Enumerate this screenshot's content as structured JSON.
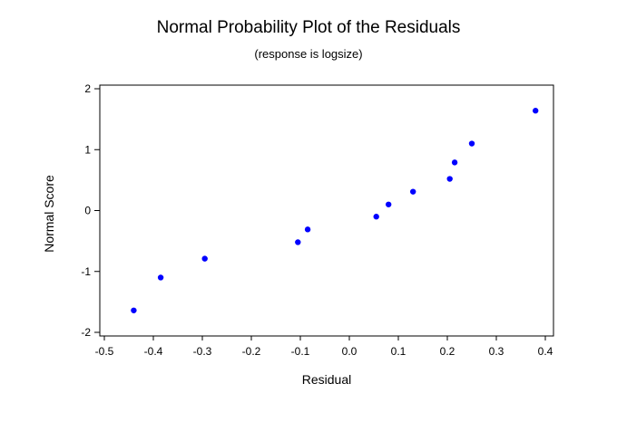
{
  "chart_data": {
    "type": "scatter",
    "title": "Normal Probability Plot of the Residuals",
    "subtitle": "(response is logsize)",
    "xlabel": "Residual",
    "ylabel": "Normal Score",
    "xlim": [
      -0.5,
      0.4
    ],
    "ylim": [
      -2,
      2
    ],
    "x_ticks": [
      -0.5,
      -0.4,
      -0.3,
      -0.2,
      -0.1,
      0.0,
      0.1,
      0.2,
      0.3,
      0.4
    ],
    "x_tick_labels": [
      "-0.5",
      "-0.4",
      "-0.3",
      "-0.2",
      "-0.1",
      "0.0",
      "0.1",
      "0.2",
      "0.3",
      "0.4"
    ],
    "y_ticks": [
      -2,
      -1,
      0,
      1,
      2
    ],
    "y_tick_labels": [
      "-2",
      "-1",
      "0",
      "1",
      "2"
    ],
    "grid": false,
    "marker_color": "#0000ff",
    "points": [
      {
        "x": -0.44,
        "y": -1.64
      },
      {
        "x": -0.385,
        "y": -1.1
      },
      {
        "x": -0.295,
        "y": -0.79
      },
      {
        "x": -0.105,
        "y": -0.52
      },
      {
        "x": -0.085,
        "y": -0.31
      },
      {
        "x": 0.055,
        "y": -0.1
      },
      {
        "x": 0.08,
        "y": 0.1
      },
      {
        "x": 0.13,
        "y": 0.31
      },
      {
        "x": 0.205,
        "y": 0.52
      },
      {
        "x": 0.215,
        "y": 0.79
      },
      {
        "x": 0.25,
        "y": 1.1
      },
      {
        "x": 0.38,
        "y": 1.64
      }
    ]
  }
}
